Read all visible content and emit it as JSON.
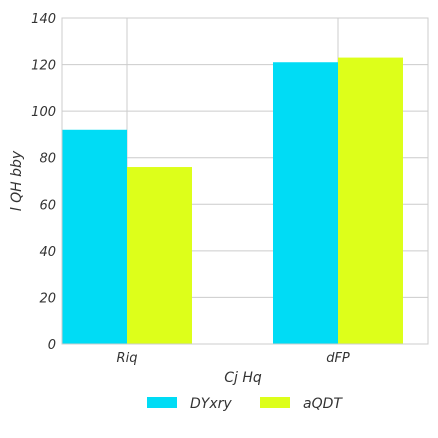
{
  "chart_data": {
    "type": "bar",
    "title": "",
    "xlabel": "Cj Hq",
    "ylabel": "l QH bby",
    "categories": [
      "Riq",
      "dFP"
    ],
    "series": [
      {
        "name": "DYxry",
        "values": [
          92,
          121
        ],
        "color": "#00dcf5"
      },
      {
        "name": "aQDT",
        "values": [
          76,
          123
        ],
        "color": "#ddff1a"
      }
    ],
    "ylim": [
      0,
      140
    ],
    "yticks": [
      0,
      20,
      40,
      60,
      80,
      100,
      120,
      140
    ],
    "grid": true,
    "legend_position": "bottom-center"
  }
}
